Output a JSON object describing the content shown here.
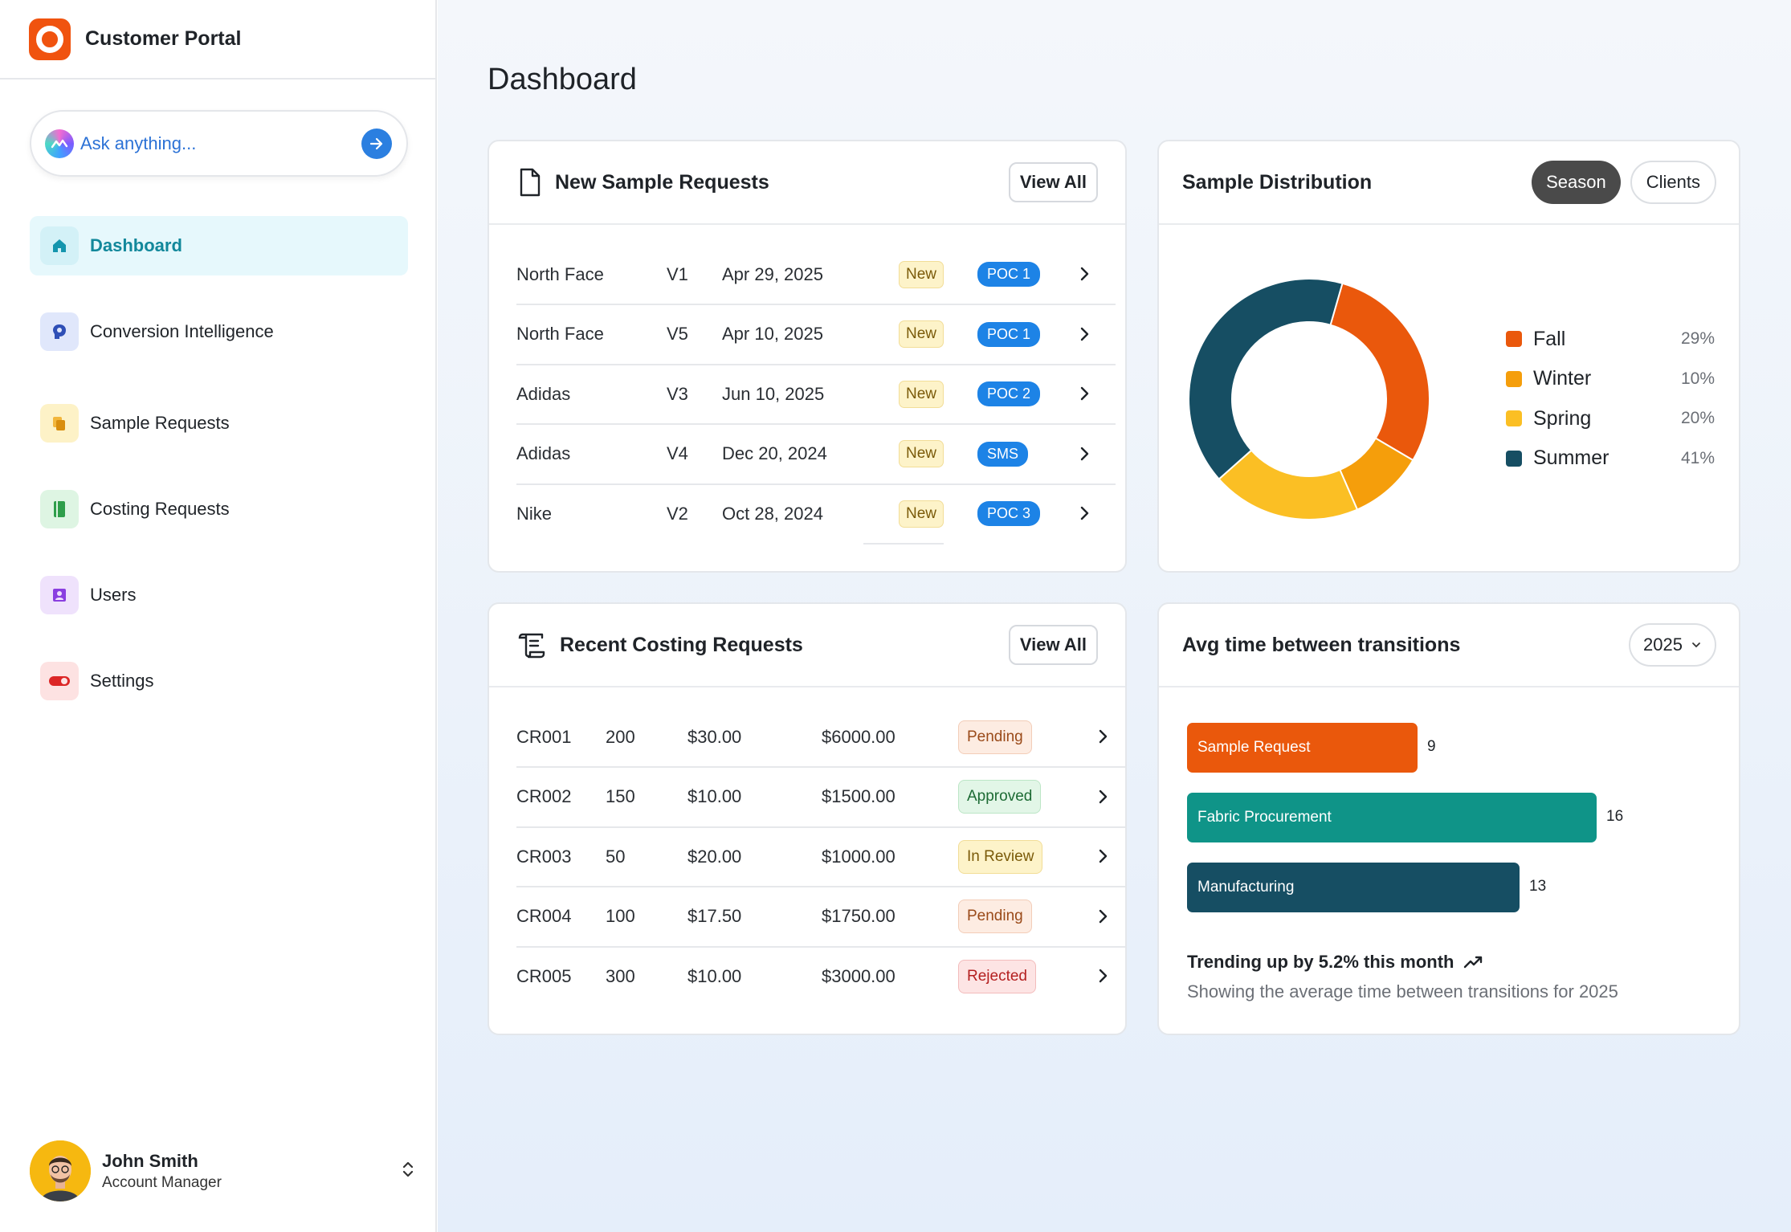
{
  "app": {
    "title": "Customer Portal"
  },
  "ask": {
    "placeholder": "Ask anything..."
  },
  "nav": [
    {
      "label": "Dashboard",
      "icon": "home-icon",
      "active": true
    },
    {
      "label": "Conversion Intelligence",
      "icon": "brain-icon"
    },
    {
      "label": "Sample Requests",
      "icon": "layers-icon"
    },
    {
      "label": "Costing Requests",
      "icon": "book-icon"
    },
    {
      "label": "Users",
      "icon": "user-card-icon"
    },
    {
      "label": "Settings",
      "icon": "toggle-icon"
    }
  ],
  "user": {
    "name": "John Smith",
    "role": "Account Manager"
  },
  "page": {
    "title": "Dashboard"
  },
  "samples": {
    "title": "New Sample Requests",
    "view_all": "View All",
    "rows": [
      {
        "client": "North Face",
        "version": "V1",
        "date": "Apr 29, 2025",
        "status": "New",
        "tag": "POC 1"
      },
      {
        "client": "North Face",
        "version": "V5",
        "date": "Apr 10, 2025",
        "status": "New",
        "tag": "POC 1"
      },
      {
        "client": "Adidas",
        "version": "V3",
        "date": "Jun 10, 2025",
        "status": "New",
        "tag": "POC 2"
      },
      {
        "client": "Adidas",
        "version": "V4",
        "date": "Dec 20, 2024",
        "status": "New",
        "tag": "SMS"
      },
      {
        "client": "Nike",
        "version": "V2",
        "date": "Oct 28, 2024",
        "status": "New",
        "tag": "POC 3"
      }
    ]
  },
  "distribution": {
    "title": "Sample Distribution",
    "toggle": [
      "Season",
      "Clients"
    ],
    "active_toggle": "Season"
  },
  "costing": {
    "title": "Recent Costing Requests",
    "view_all": "View All",
    "rows": [
      {
        "id": "CR001",
        "qty": "200",
        "unit": "$30.00",
        "total": "$6000.00",
        "status": "Pending"
      },
      {
        "id": "CR002",
        "qty": "150",
        "unit": "$10.00",
        "total": "$1500.00",
        "status": "Approved"
      },
      {
        "id": "CR003",
        "qty": "50",
        "unit": "$20.00",
        "total": "$1000.00",
        "status": "In Review"
      },
      {
        "id": "CR004",
        "qty": "100",
        "unit": "$17.50",
        "total": "$1750.00",
        "status": "Pending"
      },
      {
        "id": "CR005",
        "qty": "300",
        "unit": "$10.00",
        "total": "$3000.00",
        "status": "Rejected"
      }
    ]
  },
  "transitions": {
    "title": "Avg time between transitions",
    "year": "2025",
    "trend": "Trending up by 5.2% this month",
    "caption": "Showing the average time between transitions for 2025"
  },
  "chart_data": [
    {
      "type": "pie",
      "title": "Sample Distribution",
      "categories": [
        "Fall",
        "Winter",
        "Spring",
        "Summer"
      ],
      "values": [
        29,
        10,
        20,
        41
      ],
      "labels": [
        "29%",
        "10%",
        "20%",
        "41%"
      ],
      "colors": [
        "#ea580c",
        "#f59e0b",
        "#fbbf24",
        "#164e63"
      ],
      "donut": true,
      "legend": "right"
    },
    {
      "type": "bar",
      "orientation": "horizontal",
      "title": "Avg time between transitions",
      "categories": [
        "Sample Request",
        "Fabric Procurement",
        "Manufacturing"
      ],
      "values": [
        9,
        16,
        13
      ],
      "colors": [
        "#ea580c",
        "#0f9488",
        "#164e63"
      ]
    }
  ]
}
